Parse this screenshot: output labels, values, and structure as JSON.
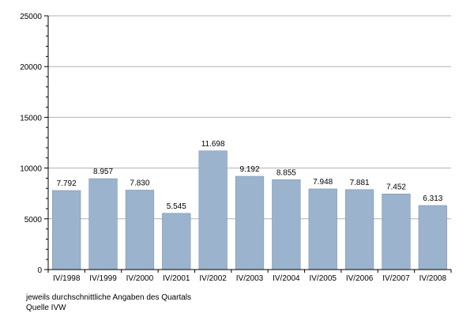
{
  "chart_data": {
    "type": "bar",
    "categories": [
      "IV/1998",
      "IV/1999",
      "IV/2000",
      "IV/2001",
      "IV/2002",
      "IV/2003",
      "IV/2004",
      "IV/2005",
      "IV/2006",
      "IV/2007",
      "IV/2008"
    ],
    "values": [
      7792,
      8957,
      7830,
      5545,
      11698,
      9192,
      8855,
      7948,
      7881,
      7452,
      6313
    ],
    "data_labels": [
      "7.792",
      "8.957",
      "7.830",
      "5.545",
      "11.698",
      "9.192",
      "8.855",
      "7.948",
      "7.881",
      "7.452",
      "6.313"
    ],
    "title": "",
    "xlabel": "",
    "ylabel": "",
    "ylim": [
      0,
      25000
    ],
    "yticks": [
      0,
      5000,
      10000,
      15000,
      20000,
      25000
    ],
    "ytick_labels": [
      "0",
      "5000",
      "10000",
      "15000",
      "20000",
      "25000"
    ],
    "grid": true,
    "legend": "none",
    "bar_color": "#9bb3cc",
    "bar_edge_color": "#7f97b0"
  },
  "notes": {
    "line1": "jeweils durchschnittliche Angaben des Quartals",
    "line2": "Quelle IVW"
  }
}
